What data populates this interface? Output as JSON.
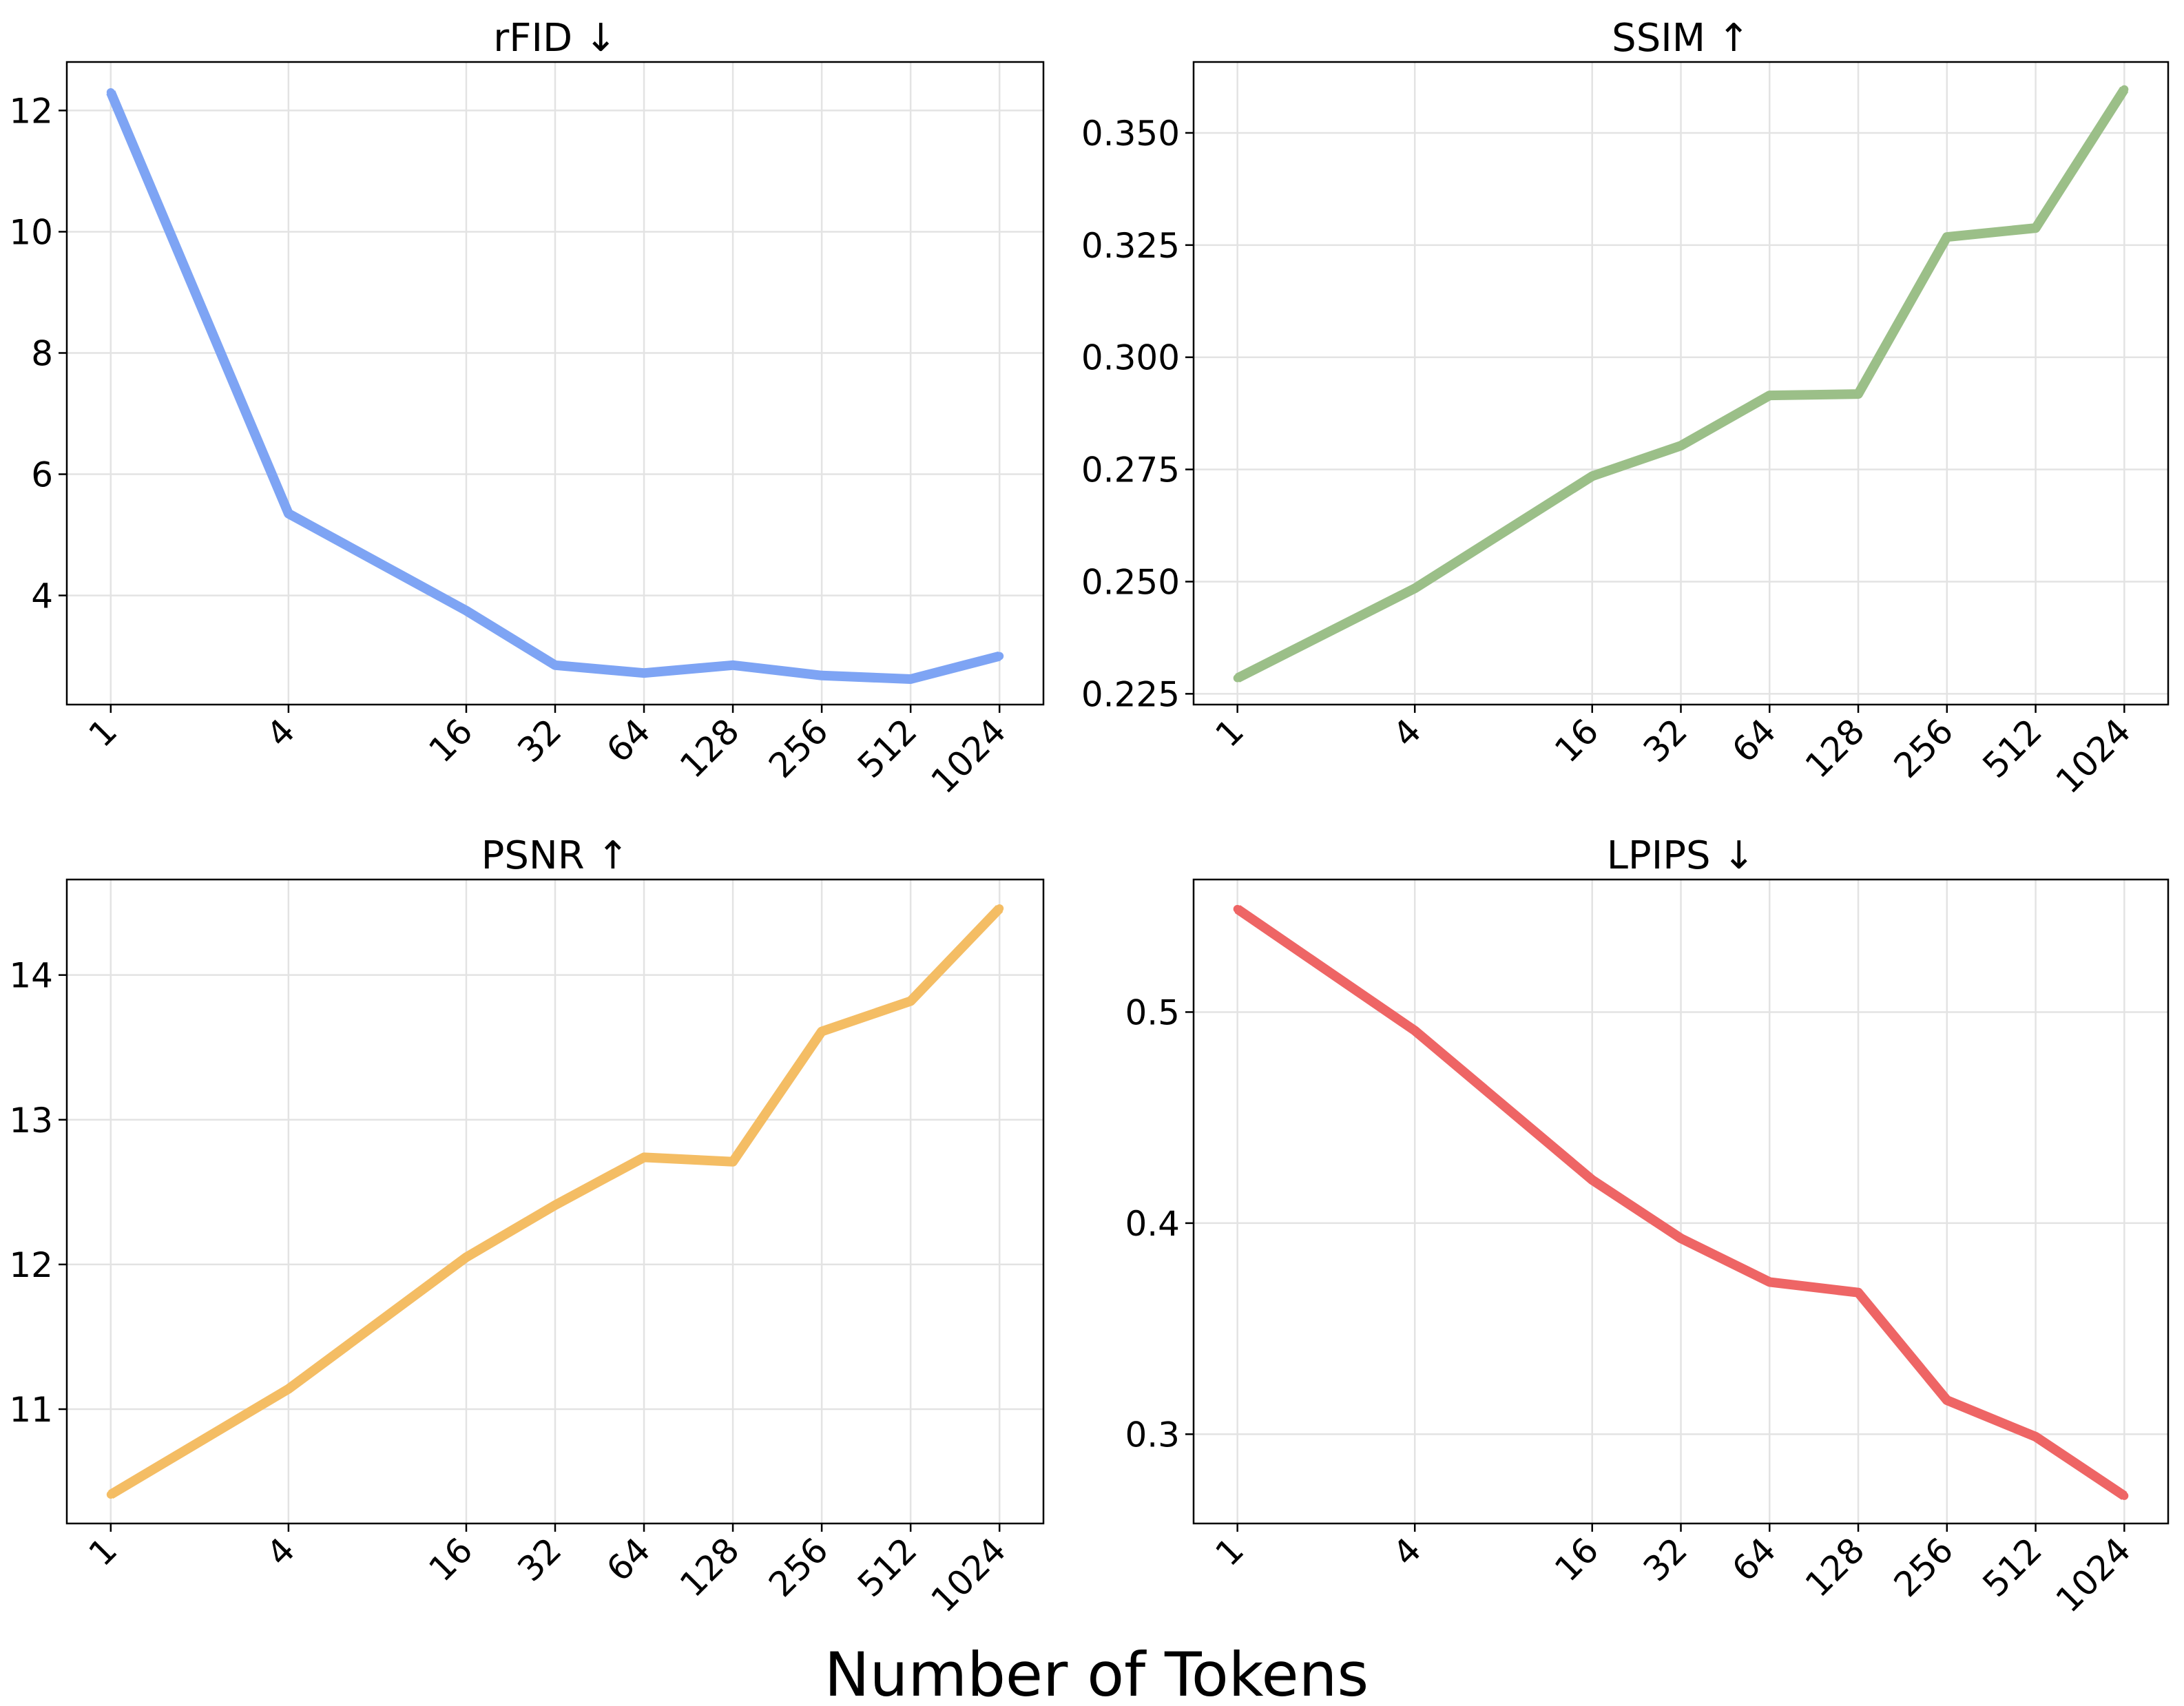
{
  "figure": {
    "xlabel": "Number of Tokens"
  },
  "chart_data": [
    {
      "type": "line",
      "title": "rFID ↓",
      "x": [
        1,
        4,
        16,
        32,
        64,
        128,
        256,
        512,
        1024
      ],
      "x_tick_labels": [
        "1",
        "4",
        "16",
        "32",
        "64",
        "128",
        "256",
        "512",
        "1024"
      ],
      "x_scale": "log2",
      "y_ticks": [
        4,
        6,
        8,
        10,
        12
      ],
      "y_tick_labels": [
        "4",
        "6",
        "8",
        "10",
        "12"
      ],
      "ylim": [
        2.2,
        12.8
      ],
      "grid": true,
      "series": [
        {
          "color": "#7ea4f4",
          "values": [
            12.3,
            5.35,
            3.75,
            2.85,
            2.72,
            2.85,
            2.68,
            2.62,
            3.0
          ]
        }
      ]
    },
    {
      "type": "line",
      "title": "SSIM ↑",
      "x": [
        1,
        4,
        16,
        32,
        64,
        128,
        256,
        512,
        1024
      ],
      "x_tick_labels": [
        "1",
        "4",
        "16",
        "32",
        "64",
        "128",
        "256",
        "512",
        "1024"
      ],
      "x_scale": "log2",
      "y_ticks": [
        0.225,
        0.25,
        0.275,
        0.3,
        0.325,
        0.35
      ],
      "y_tick_labels": [
        "0.225",
        "0.250",
        "0.275",
        "0.300",
        "0.325",
        "0.350"
      ],
      "ylim": [
        0.2226,
        0.3658
      ],
      "grid": true,
      "series": [
        {
          "color": "#9bbf88",
          "values": [
            0.2285,
            0.2485,
            0.2735,
            0.2803,
            0.2915,
            0.2918,
            0.3268,
            0.3288,
            0.3597
          ]
        }
      ]
    },
    {
      "type": "line",
      "title": "PSNR ↑",
      "x": [
        1,
        4,
        16,
        32,
        64,
        128,
        256,
        512,
        1024
      ],
      "x_tick_labels": [
        "1",
        "4",
        "16",
        "32",
        "64",
        "128",
        "256",
        "512",
        "1024"
      ],
      "x_scale": "log2",
      "y_ticks": [
        11,
        12,
        13,
        14
      ],
      "y_tick_labels": [
        "11",
        "12",
        "13",
        "14"
      ],
      "ylim": [
        10.21,
        14.66
      ],
      "grid": true,
      "series": [
        {
          "color": "#f4bd64",
          "values": [
            10.41,
            11.14,
            12.05,
            12.41,
            12.74,
            12.71,
            13.61,
            13.82,
            14.46
          ]
        }
      ]
    },
    {
      "type": "line",
      "title": "LPIPS ↓",
      "x": [
        1,
        4,
        16,
        32,
        64,
        128,
        256,
        512,
        1024
      ],
      "x_tick_labels": [
        "1",
        "4",
        "16",
        "32",
        "64",
        "128",
        "256",
        "512",
        "1024"
      ],
      "x_scale": "log2",
      "y_ticks": [
        0.3,
        0.4,
        0.5
      ],
      "y_tick_labels": [
        "0.3",
        "0.4",
        "0.5"
      ],
      "ylim": [
        0.2577,
        0.5628
      ],
      "grid": true,
      "series": [
        {
          "color": "#ee6565",
          "values": [
            0.5488,
            0.4912,
            0.4205,
            0.3928,
            0.3721,
            0.3671,
            0.3161,
            0.2988,
            0.2708
          ]
        }
      ]
    }
  ]
}
